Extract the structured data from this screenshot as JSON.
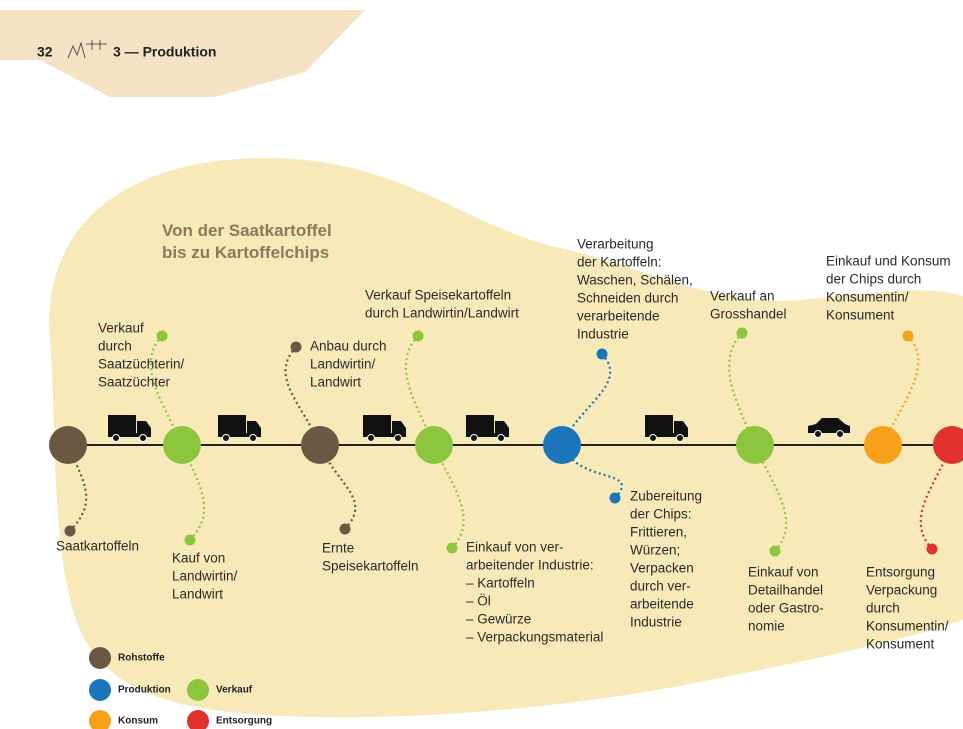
{
  "header": {
    "page": "32",
    "section": "3 — Produktion"
  },
  "title": [
    "Von der Saatkartoffel",
    "bis zu Kartoffelchips"
  ],
  "steps": [
    [
      "Verkauf",
      "durch",
      "Saatzüchterin/",
      "Saatzüchter"
    ],
    [
      "Saatkartoffeln"
    ],
    [
      "Kauf von",
      "Landwirtin/",
      "Landwirt"
    ],
    [
      "Anbau durch",
      "Landwirtin/",
      "Landwirt"
    ],
    [
      "Ernte",
      "Speisekartoffeln"
    ],
    [
      "Verkauf Speisekartoffeln",
      "durch Landwirtin/Landwirt"
    ],
    [
      "Einkauf von ver-",
      "arbeitender Industrie:",
      "– Kartoffeln",
      "– Öl",
      "– Gewürze",
      "– Verpackungsmaterial"
    ],
    [
      "Verarbeitung",
      "der Kartoffeln:",
      "Waschen, Schälen,",
      "Schneiden durch",
      "verarbeitende",
      "Industrie"
    ],
    [
      "Zubereitung",
      "der Chips:",
      "Frittieren,",
      "Würzen;",
      "Verpacken",
      "durch ver-",
      "arbeitende",
      "Industrie"
    ],
    [
      "Verkauf an",
      "Grosshandel"
    ],
    [
      "Einkauf von",
      "Detailhandel",
      "oder Gastro-",
      "nomie"
    ],
    [
      "Einkauf und Konsum",
      "der Chips durch",
      "Konsumentin/",
      "Konsument"
    ],
    [
      "Entsorgung",
      "Verpackung",
      "durch",
      "Konsumentin/",
      "Konsument"
    ]
  ],
  "legend": [
    "Rohstoffe",
    "Produktion",
    "Verkauf",
    "Konsum",
    "Entsorgung"
  ]
}
